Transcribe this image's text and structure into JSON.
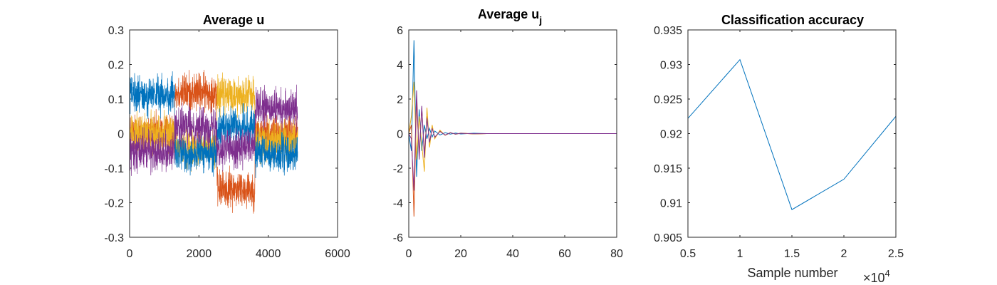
{
  "chart_data": [
    {
      "type": "line",
      "title": "Average u",
      "xlabel": "",
      "ylabel": "",
      "xlim": [
        0,
        6000
      ],
      "ylim": [
        -0.3,
        0.3
      ],
      "xticks": [
        "0",
        "2000",
        "4000",
        "6000"
      ],
      "yticks": [
        "-0.3",
        "-0.2",
        "-0.1",
        "0",
        "0.1",
        "0.2",
        "0.3"
      ],
      "grid": false,
      "description_segments": [
        {
          "x_range": [
            0,
            1300
          ],
          "levels": {
            "blue": 0.11,
            "orange": 0.0,
            "yellow": 0.0,
            "purple": -0.05
          }
        },
        {
          "x_range": [
            1300,
            2520
          ],
          "levels": {
            "blue": -0.06,
            "orange": 0.12,
            "yellow": -0.04,
            "purple": 0.02
          }
        },
        {
          "x_range": [
            2520,
            3620
          ],
          "levels": {
            "blue": 0.02,
            "orange": -0.16,
            "yellow": 0.11,
            "purple": -0.04
          }
        },
        {
          "x_range": [
            3620,
            4850
          ],
          "levels": {
            "blue": -0.06,
            "orange": 0.0,
            "yellow": -0.02,
            "purple": 0.07
          }
        }
      ],
      "series": [
        {
          "color": "#0072BD"
        },
        {
          "color": "#D95319"
        },
        {
          "color": "#EDB120"
        },
        {
          "color": "#7E2F8E"
        }
      ]
    },
    {
      "type": "line",
      "title": "Average u",
      "title_subscript": "j",
      "xlabel": "",
      "ylabel": "",
      "xlim": [
        0,
        80
      ],
      "ylim": [
        -6,
        6
      ],
      "xticks": [
        "0",
        "20",
        "40",
        "60",
        "80"
      ],
      "yticks": [
        "-6",
        "-4",
        "-2",
        "0",
        "2",
        "4",
        "6"
      ],
      "grid": false,
      "series": [
        {
          "color": "#0072BD",
          "x": [
            0,
            1,
            2,
            3,
            4,
            5,
            6,
            7,
            8,
            9,
            10,
            12,
            14,
            16,
            18,
            20,
            25,
            30,
            80
          ],
          "y": [
            0,
            -1.0,
            5.4,
            -2.5,
            1.4,
            -1.0,
            0.5,
            -0.3,
            0.3,
            -0.2,
            0.15,
            -0.08,
            0.05,
            -0.03,
            0.03,
            -0.02,
            0.02,
            0.0,
            0.0
          ]
        },
        {
          "color": "#D95319",
          "x": [
            0,
            1,
            2,
            3,
            4,
            5,
            6,
            7,
            8,
            9,
            10,
            12,
            14,
            16,
            18,
            20,
            25,
            30,
            80
          ],
          "y": [
            0,
            0.5,
            -4.8,
            2.0,
            -1.2,
            1.5,
            -1.2,
            1.0,
            -0.6,
            0.4,
            -0.25,
            0.15,
            -0.1,
            0.05,
            -0.03,
            0.02,
            -0.02,
            0.0,
            0.0
          ]
        },
        {
          "color": "#EDB120",
          "x": [
            0,
            1,
            2,
            3,
            4,
            5,
            6,
            7,
            8,
            9,
            10,
            12,
            14,
            16,
            18,
            20,
            25,
            30,
            80
          ],
          "y": [
            0,
            1.0,
            3.0,
            -1.5,
            1.0,
            -0.6,
            -2.2,
            1.5,
            -0.8,
            0.5,
            -0.3,
            0.2,
            -0.1,
            0.06,
            -0.04,
            0.03,
            -0.02,
            0.0,
            0.0
          ]
        },
        {
          "color": "#7E2F8E",
          "x": [
            0,
            1,
            2,
            3,
            4,
            5,
            6,
            7,
            8,
            9,
            10,
            12,
            14,
            16,
            18,
            20,
            25,
            30,
            80
          ],
          "y": [
            0,
            -0.3,
            -3.3,
            2.5,
            -1.5,
            1.6,
            -1.4,
            0.9,
            -0.5,
            0.3,
            -0.2,
            0.12,
            -0.08,
            0.05,
            -0.03,
            0.02,
            -0.01,
            0.0,
            0.0
          ]
        }
      ]
    },
    {
      "type": "line",
      "title": "Classification accuracy",
      "xlabel": "Sample number",
      "ylabel": "",
      "xlim": [
        5000,
        25000
      ],
      "ylim": [
        0.905,
        0.935
      ],
      "xticks": [
        "0.5",
        "1",
        "1.5",
        "2",
        "2.5"
      ],
      "x_exponent_label": "×10",
      "x_exponent": "4",
      "yticks": [
        "0.905",
        "0.91",
        "0.915",
        "0.92",
        "0.925",
        "0.93",
        "0.935"
      ],
      "grid": false,
      "series": [
        {
          "color": "#0072BD",
          "x": [
            5000,
            10000,
            15000,
            20000,
            25000
          ],
          "y": [
            0.9222,
            0.9307,
            0.909,
            0.9134,
            0.9225
          ]
        }
      ]
    }
  ]
}
